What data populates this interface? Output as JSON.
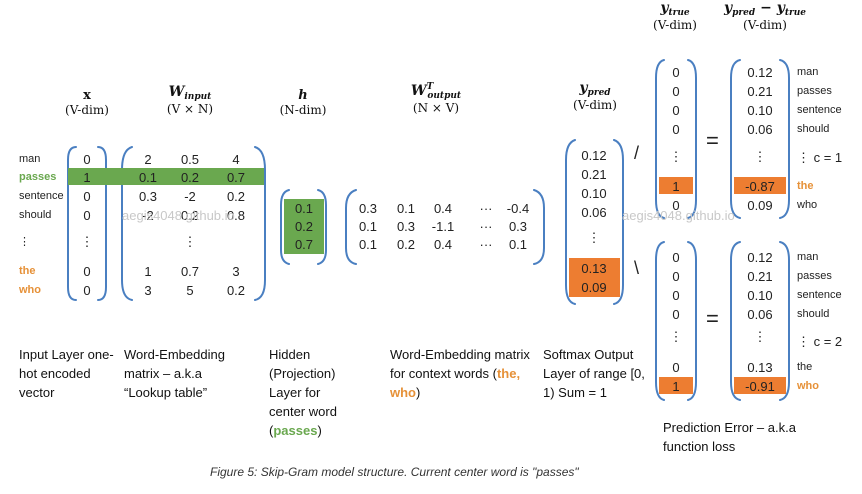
{
  "words": {
    "list": [
      "man",
      "passes",
      "sentence",
      "should",
      "⋮",
      "the",
      "who"
    ],
    "right_list": [
      "man",
      "passes",
      "sentence",
      "should"
    ],
    "c1_the": "the",
    "c1_who": "who",
    "c2_the": "the",
    "c2_who": "who"
  },
  "headers": {
    "x": "x",
    "x_dim": "(V-dim)",
    "w_input": "W",
    "w_input_sub": "input",
    "w_input_dim": "(V × N)",
    "h": "h",
    "h_dim": "(N-dim)",
    "w_output": "W",
    "w_output_sup": "T",
    "w_output_sub": "output",
    "w_output_dim": "(N × V)",
    "y_pred": "y",
    "y_pred_sub": "pred",
    "y_pred_dim": "(V-dim)",
    "y_true": "y",
    "y_true_sub": "true",
    "y_true_dim": "(V-dim)",
    "diff_a": "y",
    "diff_a_sub": "pred",
    "diff_minus": " − ",
    "diff_b": "y",
    "diff_b_sub": "true",
    "diff_dim": "(V-dim)"
  },
  "x_vector": [
    "0",
    "1",
    "0",
    "0",
    "⋮",
    "0",
    "0"
  ],
  "w_input_matrix": [
    [
      "2",
      "0.5",
      "4"
    ],
    [
      "0.1",
      "0.2",
      "0.7"
    ],
    [
      "0.3",
      "-2",
      "0.2"
    ],
    [
      "-2",
      "0.2",
      "0.8"
    ],
    [
      "",
      "⋮",
      ""
    ],
    [
      "1",
      "0.7",
      "3"
    ],
    [
      "3",
      "5",
      "0.2"
    ]
  ],
  "h_vector": [
    "0.1",
    "0.2",
    "0.7"
  ],
  "w_output_matrix": [
    [
      "0.3",
      "0.1",
      "0.4",
      "···",
      "-0.4"
    ],
    [
      "0.1",
      "0.3",
      "-1.1",
      "···",
      "0.3"
    ],
    [
      "0.1",
      "0.2",
      "0.4",
      "···",
      "0.1"
    ]
  ],
  "y_pred_vector": [
    "0.12",
    "0.21",
    "0.10",
    "0.06",
    "⋮",
    "0.13",
    "0.09"
  ],
  "y_true_c1": [
    "0",
    "0",
    "0",
    "0",
    "⋮",
    "1",
    "0"
  ],
  "diff_c1": [
    "0.12",
    "0.21",
    "0.10",
    "0.06",
    "⋮",
    "-0.87",
    "0.09"
  ],
  "y_true_c2": [
    "0",
    "0",
    "0",
    "0",
    "⋮",
    "0",
    "1"
  ],
  "diff_c2": [
    "0.12",
    "0.21",
    "0.10",
    "0.06",
    "⋮",
    "0.13",
    "-0.91"
  ],
  "ops": {
    "slash": "/",
    "backslash": "\\",
    "equals1": "=",
    "equals2": "="
  },
  "context": {
    "c1": "⋮  c = 1",
    "c2": "⋮  c = 2"
  },
  "watermark": "aegis4048.github.io",
  "descriptions": {
    "input_layer": "Input Layer one-hot encoded vector",
    "word_embedding_1": "Word-Embedding matrix – a.k.a “Lookup table”",
    "hidden_prefix": "Hidden (Projection) Layer for center word (",
    "hidden_word": "passes",
    "hidden_suffix": ")",
    "word_embedding_2_prefix": "Word-Embedding matrix for context words (",
    "word_embedding_2_words": "the, who",
    "word_embedding_2_suffix": ")",
    "softmax": "Softmax Output Layer of range [0, 1) Sum = 1",
    "prediction_error": "Prediction Error – a.k.a function loss"
  },
  "caption": "Figure 5: Skip-Gram model structure. Current center word is \"passes\"",
  "colors": {
    "green": "#6aa84f",
    "orange": "#ed7d31",
    "bracket": "#4a7fc1"
  }
}
